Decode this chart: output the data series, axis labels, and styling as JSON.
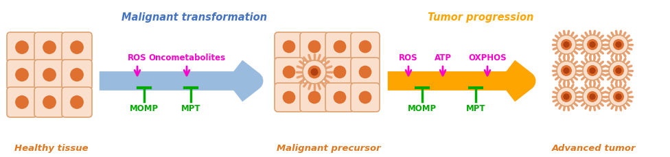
{
  "title_left": "Malignant transformation",
  "title_right": "Tumor progression",
  "title_left_color": "#4472C4",
  "title_right_color": "#FFA500",
  "label_healthy": "Healthy tissue",
  "label_precursor": "Malignant precursor",
  "label_advanced": "Advanced tumor",
  "label_color": "#E07820",
  "ros_color": "#FF00CC",
  "inhibit_color": "#00AA00",
  "arrow1_color": "#99BBDD",
  "arrow2_color": "#FFA500",
  "cell_border_color": "#DDA070",
  "cell_fill_color": "#FAE0CC",
  "nucleus_color": "#E07030",
  "nucleus_inner_color": "#B04010",
  "spike_color": "#E8A070",
  "fig_w": 9.76,
  "fig_h": 2.29,
  "dpi": 100
}
